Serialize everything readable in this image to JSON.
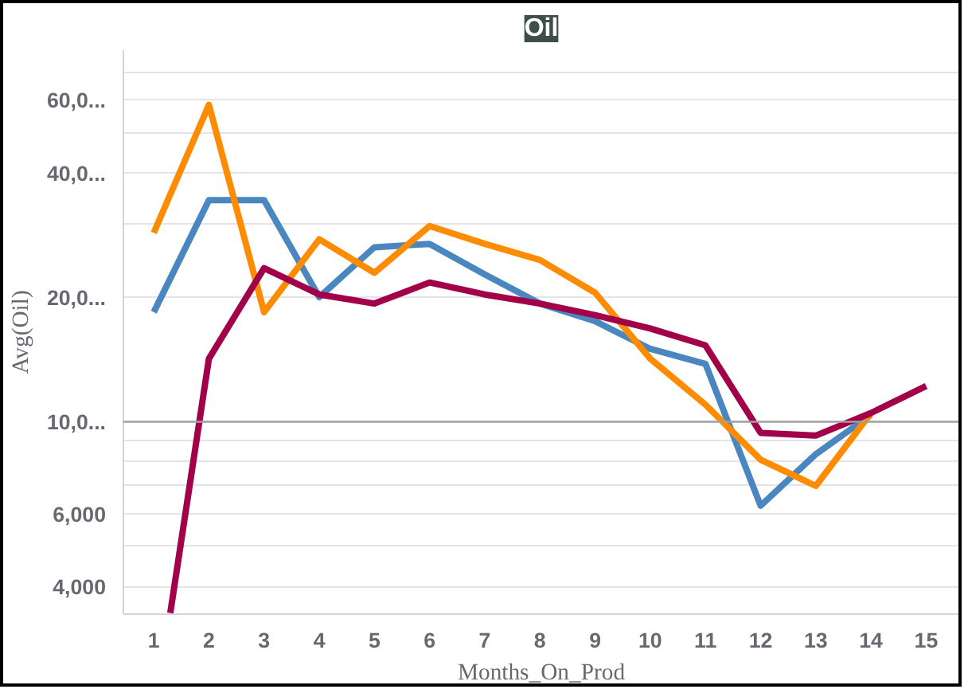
{
  "chart_data": {
    "type": "line",
    "title": "Oil",
    "xlabel": "Months_On_Prod",
    "ylabel": "Avg(Oil)",
    "series": [
      {
        "color": "#4a86bf",
        "x": [
          1,
          2,
          3,
          4,
          5,
          6,
          7,
          8,
          9,
          10,
          11,
          12,
          13,
          14
        ],
        "values": [
          18400,
          34300,
          34300,
          20000,
          26400,
          26900,
          22700,
          19300,
          17500,
          15000,
          13800,
          6270,
          8350,
          10400
        ]
      },
      {
        "color": "#ff8c00",
        "x": [
          1,
          2,
          3,
          4,
          5,
          6,
          7,
          8,
          9,
          10,
          11,
          12,
          13,
          14
        ],
        "values": [
          28600,
          58300,
          18400,
          27600,
          22900,
          29700,
          26900,
          24600,
          20500,
          14200,
          11000,
          8100,
          7000,
          10500
        ]
      },
      {
        "color": "#a3004a",
        "x": [
          1.3,
          2,
          3,
          4,
          5,
          6,
          7,
          8,
          9,
          10,
          11,
          12,
          13,
          14,
          15
        ],
        "values": [
          3450,
          14200,
          23500,
          20300,
          19300,
          21700,
          20300,
          19300,
          18100,
          16800,
          15300,
          9400,
          9260,
          10500,
          12200
        ]
      }
    ],
    "log": "y",
    "xlim": [
      0.45,
      15.6
    ],
    "ylim": [
      3430,
      79000
    ],
    "xticks": [
      1,
      2,
      3,
      4,
      5,
      6,
      7,
      8,
      9,
      10,
      11,
      12,
      13,
      14,
      15
    ],
    "yticks": [
      {
        "value": 4000,
        "label": "4,000"
      },
      {
        "value": 5000,
        "label": null
      },
      {
        "value": 6000,
        "label": "6,000"
      },
      {
        "value": 7000,
        "label": null
      },
      {
        "value": 8000,
        "label": null
      },
      {
        "value": 9000,
        "label": null
      },
      {
        "value": 10000,
        "label": "10,0..."
      },
      {
        "value": 20000,
        "label": "20,0..."
      },
      {
        "value": 30000,
        "label": null
      },
      {
        "value": 40000,
        "label": "40,0..."
      },
      {
        "value": 50000,
        "label": null
      },
      {
        "value": 60000,
        "label": "60,0..."
      },
      {
        "value": 70000,
        "label": null
      }
    ],
    "ref_lines": [
      {
        "axis": "y",
        "value": 10000,
        "color": "#a0a0a0"
      }
    ],
    "grid": "y",
    "marker": "none",
    "line_style": "solid"
  }
}
